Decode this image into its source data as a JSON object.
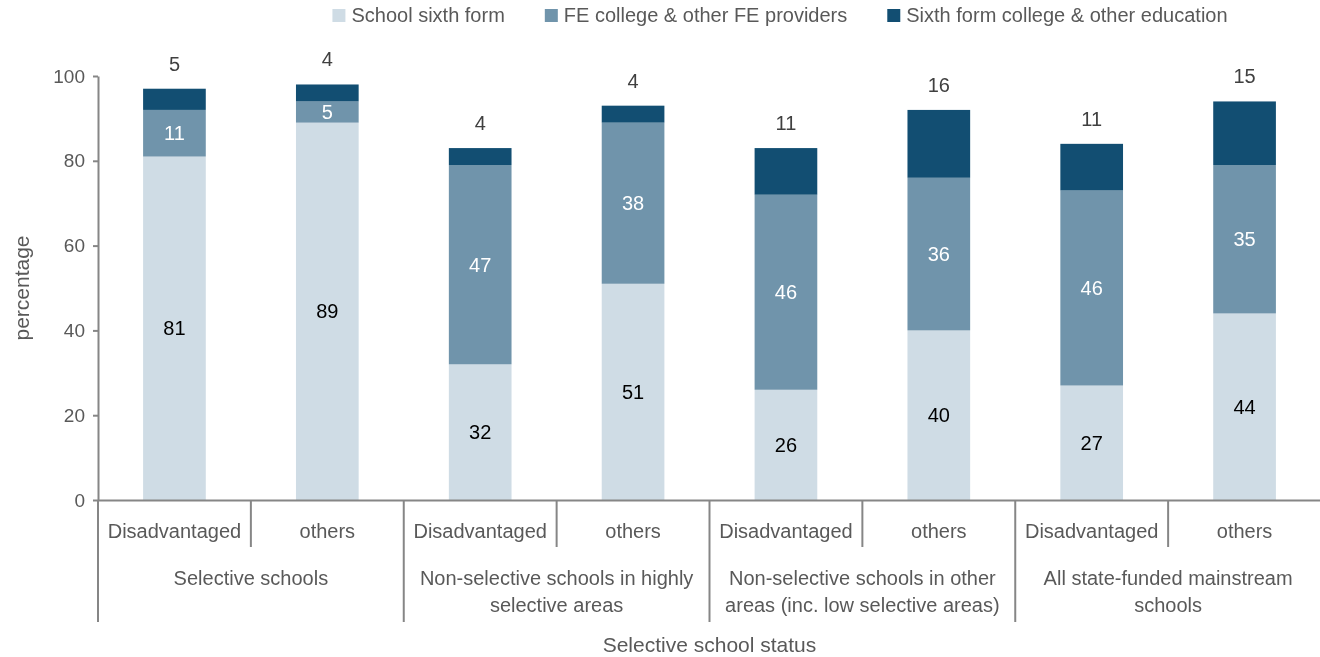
{
  "chart_data": {
    "type": "bar",
    "stacked": true,
    "categories": [
      "Disadvantaged",
      "others",
      "Disadvantaged",
      "others",
      "Disadvantaged",
      "others",
      "Disadvantaged",
      "others"
    ],
    "series": [
      {
        "name": "School sixth form",
        "color": "#cfdce5",
        "values": [
          81,
          89,
          32,
          51,
          26,
          40,
          27,
          44
        ]
      },
      {
        "name": "FE college & other FE providers",
        "color": "#7094ab",
        "values": [
          11,
          5,
          47,
          38,
          46,
          36,
          46,
          35
        ]
      },
      {
        "name": "Sixth form college & other education",
        "color": "#124e72",
        "values": [
          5,
          4,
          4,
          4,
          11,
          16,
          11,
          15
        ]
      }
    ],
    "xlabel": "Selective school status",
    "ylabel": "percentage",
    "ylim": [
      0,
      100
    ],
    "yticks": [
      0,
      20,
      40,
      60,
      80,
      100
    ],
    "legend": "top",
    "data_labels": true,
    "annotations": [
      "Selective schools",
      "Non-selective schools in highly selective areas",
      "Non-selective schools in other areas (inc. low selective areas)",
      "All state-funded mainstream schools"
    ]
  }
}
